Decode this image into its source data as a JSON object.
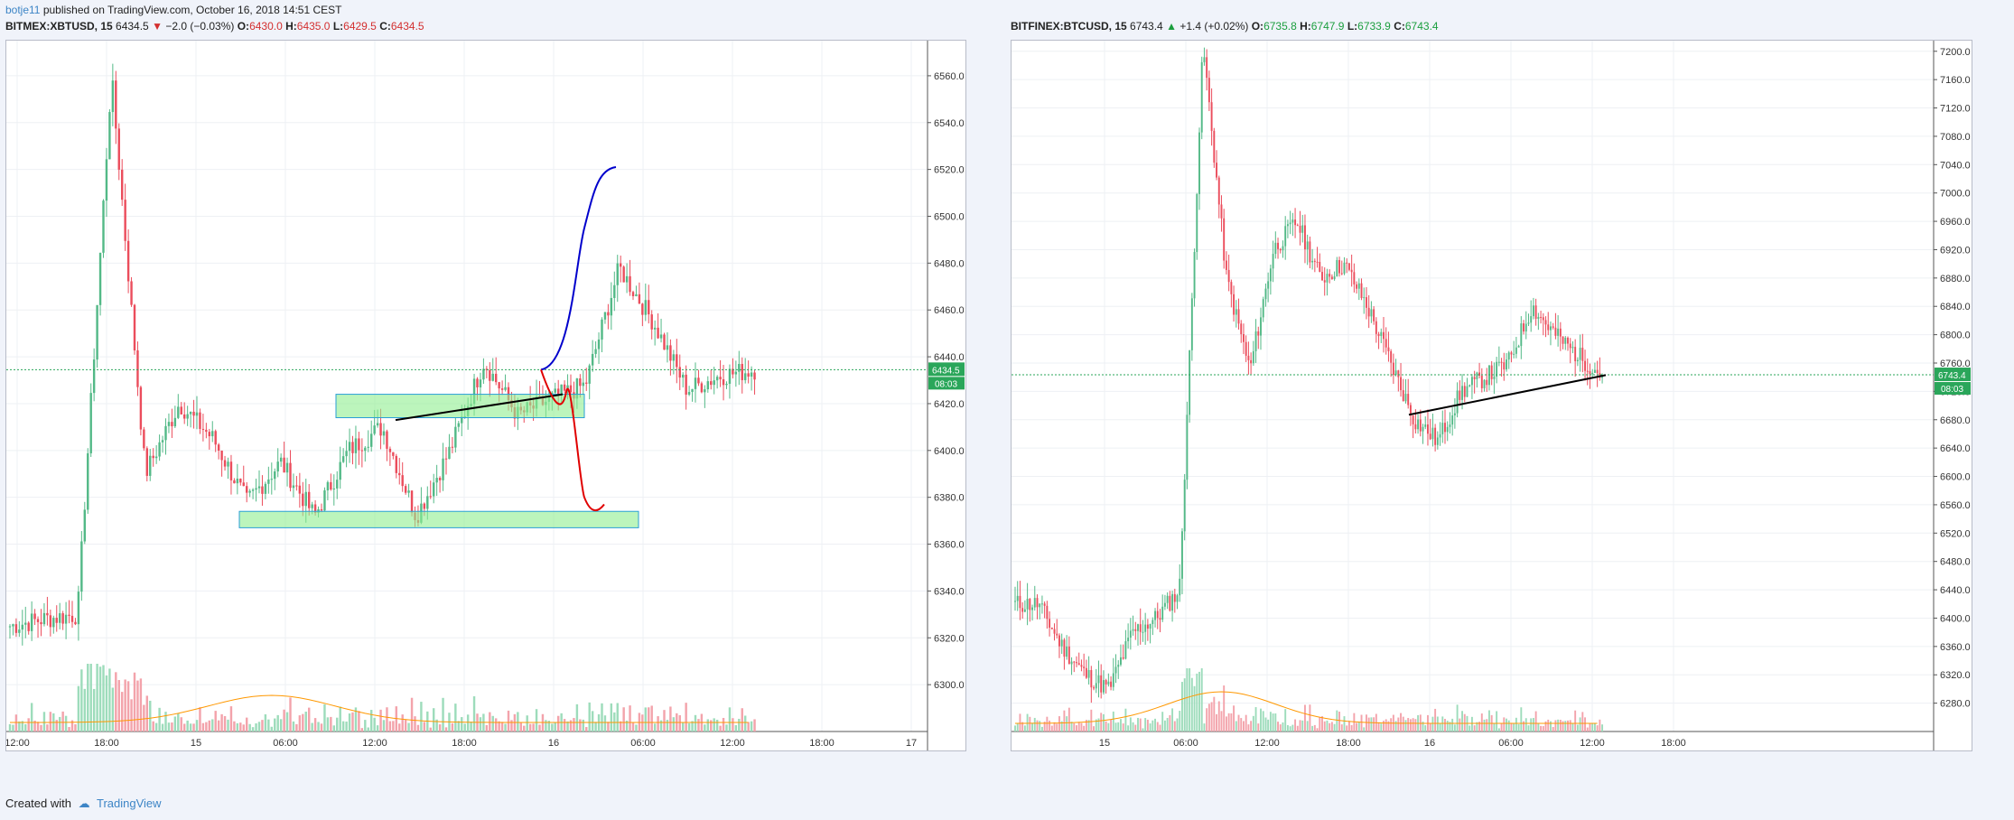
{
  "header": {
    "author": "botje11",
    "published": " published on TradingView.com, October 16, 2018 14:51 CEST"
  },
  "footer": {
    "created": "Created with",
    "brand": "TradingView"
  },
  "colors": {
    "up": "#53b987",
    "down": "#eb4d5c",
    "volume_up": "#9ddcbb",
    "volume_down": "#f3a3ab",
    "ma": "#ff9800",
    "zone": "#90ee90",
    "zone_border": "#2a9fd6",
    "projection_up": "#0000cc",
    "projection_down": "#e00000",
    "price_line": "#2aa65a"
  },
  "chart_data": [
    {
      "type": "candlestick",
      "panel": "left",
      "symbol": "BITMEX:XBTUSD, 15",
      "last": "6434.5",
      "change": "−2.0 (−0.03%)",
      "o": "6430.0",
      "h": "6435.0",
      "l": "6429.5",
      "c": "6434.5",
      "price_label": "6434.5",
      "countdown": "08:03",
      "ylim": [
        6280,
        6575
      ],
      "yticks": [
        6300,
        6320,
        6340,
        6360,
        6380,
        6400,
        6420,
        6440,
        6460,
        6480,
        6500,
        6520,
        6540,
        6560
      ],
      "xticks": [
        "12:00",
        "18:00",
        "15",
        "06:00",
        "12:00",
        "18:00",
        "16",
        "06:00",
        "12:00",
        "18:00",
        "17"
      ],
      "zones": [
        [
          6414,
          6424
        ],
        [
          6367,
          6374
        ]
      ],
      "trendline": [
        [
          6413
        ],
        [
          6424
        ]
      ],
      "ohlc_anchor_prices": [
        6325,
        6328,
        6330,
        6560,
        6390,
        6420,
        6405,
        6378,
        6395,
        6372,
        6400,
        6410,
        6372,
        6400,
        6438,
        6415,
        6422,
        6428,
        6478,
        6455,
        6426,
        6432,
        6434.5
      ],
      "projection_up_end": 6521,
      "projection_down_end": 6377
    },
    {
      "type": "candlestick",
      "panel": "right",
      "symbol": "BITFINEX:BTCUSD, 15",
      "last": "6743.4",
      "change": "+1.4 (+0.02%)",
      "o": "6735.8",
      "h": "6747.9",
      "l": "6733.9",
      "c": "6743.4",
      "price_label": "6743.4",
      "countdown": "08:03",
      "ylim": [
        6240,
        7215
      ],
      "yticks": [
        6280,
        6320,
        6360,
        6400,
        6440,
        6480,
        6520,
        6560,
        6600,
        6640,
        6680,
        6720,
        6760,
        6800,
        6840,
        6880,
        6920,
        6960,
        7000,
        7040,
        7080,
        7120,
        7160,
        7200
      ],
      "xticks": [
        "15",
        "06:00",
        "12:00",
        "18:00",
        "16",
        "06:00",
        "12:00",
        "18:00"
      ],
      "trendline": [
        [
          6687
        ],
        [
          6743
        ]
      ]
    }
  ]
}
